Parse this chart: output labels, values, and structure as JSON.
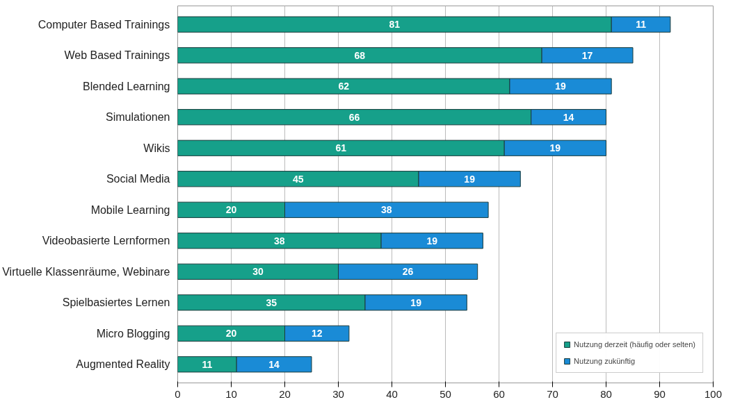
{
  "chart_data": {
    "type": "bar",
    "orientation": "horizontal",
    "stacked": true,
    "categories": [
      "Computer Based Trainings",
      "Web Based Trainings",
      "Blended Learning",
      "Simulationen",
      "Wikis",
      "Social Media",
      "Mobile Learning",
      "Videobasierte Lernformen",
      "Virtuelle Klassenräume, Webinare",
      "Spielbasiertes Lernen",
      "Micro Blogging",
      "Augmented Reality"
    ],
    "series": [
      {
        "name": "Nutzung derzeit (häufig oder selten)",
        "color": "#16a08a",
        "values": [
          81,
          68,
          62,
          66,
          61,
          45,
          20,
          38,
          30,
          35,
          20,
          11
        ]
      },
      {
        "name": "Nutzung zukünftig",
        "color": "#1a8bd6",
        "values": [
          11,
          17,
          19,
          14,
          19,
          19,
          38,
          19,
          26,
          19,
          12,
          14
        ]
      }
    ],
    "xlim": [
      0,
      100
    ],
    "xticks": [
      0,
      10,
      20,
      30,
      40,
      50,
      60,
      70,
      80,
      90,
      100
    ],
    "grid": "x",
    "legend": "bottom right",
    "data_labels": true
  }
}
